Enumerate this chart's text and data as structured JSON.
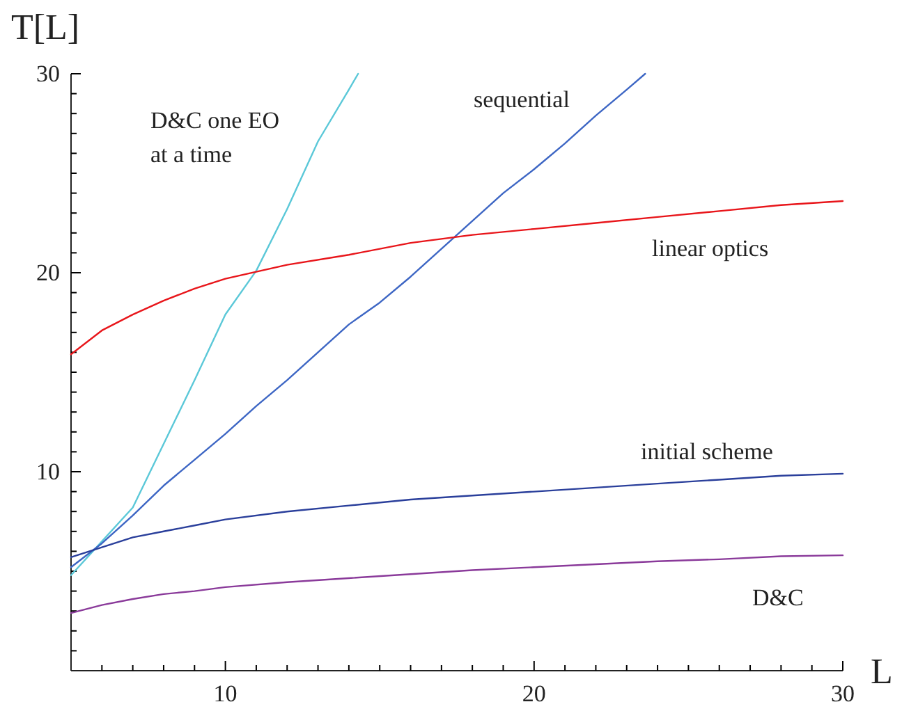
{
  "chart_data": {
    "type": "line",
    "xlabel": "L",
    "ylabel": "T[L]",
    "xlim": [
      5,
      30
    ],
    "ylim": [
      0,
      30
    ],
    "xticks": [
      {
        "value": 5,
        "label": null
      },
      {
        "value": 6,
        "label": null
      },
      {
        "value": 7,
        "label": null
      },
      {
        "value": 8,
        "label": null
      },
      {
        "value": 9,
        "label": null
      },
      10,
      {
        "value": 11,
        "label": null
      },
      {
        "value": 12,
        "label": null
      },
      {
        "value": 13,
        "label": null
      },
      {
        "value": 14,
        "label": null
      },
      {
        "value": 15,
        "label": null
      },
      {
        "value": 16,
        "label": null
      },
      {
        "value": 17,
        "label": null
      },
      {
        "value": 18,
        "label": null
      },
      {
        "value": 19,
        "label": null
      },
      20,
      {
        "value": 21,
        "label": null
      },
      {
        "value": 22,
        "label": null
      },
      {
        "value": 23,
        "label": null
      },
      {
        "value": 24,
        "label": null
      },
      {
        "value": 25,
        "label": null
      },
      {
        "value": 26,
        "label": null
      },
      {
        "value": 27,
        "label": null
      },
      {
        "value": 28,
        "label": null
      },
      {
        "value": 29,
        "label": null
      },
      30
    ],
    "yticks": [
      {
        "value": 1,
        "label": null
      },
      {
        "value": 2,
        "label": null
      },
      {
        "value": 3,
        "label": null
      },
      {
        "value": 4,
        "label": null
      },
      {
        "value": 5,
        "label": null
      },
      {
        "value": 6,
        "label": null
      },
      {
        "value": 7,
        "label": null
      },
      {
        "value": 8,
        "label": null
      },
      {
        "value": 9,
        "label": null
      },
      10,
      {
        "value": 11,
        "label": null
      },
      {
        "value": 12,
        "label": null
      },
      {
        "value": 13,
        "label": null
      },
      {
        "value": 14,
        "label": null
      },
      {
        "value": 15,
        "label": null
      },
      {
        "value": 16,
        "label": null
      },
      {
        "value": 17,
        "label": null
      },
      {
        "value": 18,
        "label": null
      },
      {
        "value": 19,
        "label": null
      },
      20,
      {
        "value": 21,
        "label": null
      },
      {
        "value": 22,
        "label": null
      },
      {
        "value": 23,
        "label": null
      },
      {
        "value": 24,
        "label": null
      },
      {
        "value": 25,
        "label": null
      },
      {
        "value": 26,
        "label": null
      },
      {
        "value": 27,
        "label": null
      },
      {
        "value": 28,
        "label": null
      },
      {
        "value": 29,
        "label": null
      },
      30
    ],
    "grid": false,
    "legend": false,
    "marker": "none",
    "line_style": "solid",
    "series": [
      {
        "name": "D&C one EO\nat a time",
        "color": "#5bc8d8",
        "x": [
          5,
          6,
          7,
          8,
          9,
          10,
          11,
          12,
          13,
          14,
          14.3
        ],
        "values": [
          4.8,
          6.5,
          8.2,
          11.4,
          14.6,
          17.9,
          20.1,
          23.2,
          26.6,
          29.2,
          30
        ]
      },
      {
        "name": "sequential",
        "color": "#3d66c4",
        "x": [
          5,
          6,
          7,
          8,
          9,
          10,
          11,
          12,
          13,
          14,
          15,
          16,
          17,
          18,
          19,
          20,
          21,
          22,
          23,
          23.6
        ],
        "values": [
          5.2,
          6.4,
          7.8,
          9.3,
          10.6,
          11.9,
          13.3,
          14.6,
          16.0,
          17.4,
          18.5,
          19.8,
          21.2,
          22.6,
          24.0,
          25.2,
          26.5,
          27.9,
          29.2,
          30
        ]
      },
      {
        "name": "linear optics",
        "color": "#e8151a",
        "x": [
          5,
          6,
          7,
          8,
          9,
          10,
          12,
          14,
          16,
          18,
          20,
          22,
          24,
          26,
          28,
          30
        ],
        "values": [
          15.9,
          17.1,
          17.9,
          18.6,
          19.2,
          19.7,
          20.4,
          20.9,
          21.5,
          21.9,
          22.2,
          22.5,
          22.8,
          23.1,
          23.4,
          23.6
        ]
      },
      {
        "name": "initial scheme",
        "color": "#2a3f9b",
        "x": [
          5,
          6,
          7,
          8,
          9,
          10,
          12,
          14,
          16,
          18,
          20,
          22,
          24,
          26,
          28,
          30
        ],
        "values": [
          5.7,
          6.2,
          6.7,
          7.0,
          7.3,
          7.6,
          8.0,
          8.3,
          8.6,
          8.8,
          9.0,
          9.2,
          9.4,
          9.6,
          9.8,
          9.9
        ]
      },
      {
        "name": "D&C",
        "color": "#8a3a9a",
        "x": [
          5,
          6,
          7,
          8,
          9,
          10,
          12,
          14,
          16,
          18,
          20,
          22,
          24,
          26,
          28,
          30
        ],
        "values": [
          2.9,
          3.3,
          3.6,
          3.85,
          4.0,
          4.2,
          4.45,
          4.65,
          4.85,
          5.05,
          5.2,
          5.35,
          5.5,
          5.6,
          5.75,
          5.8
        ]
      }
    ]
  }
}
